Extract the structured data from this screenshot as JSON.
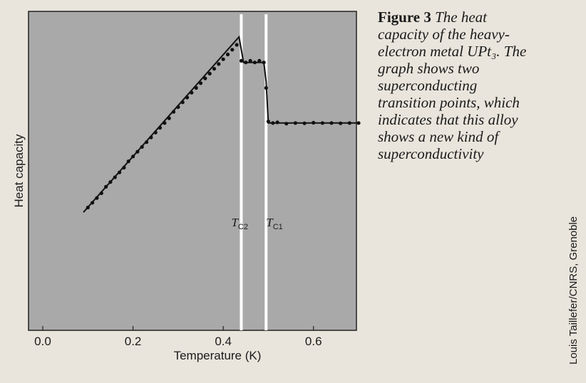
{
  "caption": {
    "label": "Figure 3",
    "text": "The heat capacity of the heavy-electron metal UPt₃. The graph shows two superconducting transition points, which indicates that this alloy shows a new kind of superconductivity"
  },
  "credit": "Louis Taillefer/CNRS, Grenoble",
  "colors": {
    "plot_background": "#a9a9a9",
    "page_background": "#e9e5dc",
    "marker_lines": "#ffffff",
    "data": "#111111"
  },
  "chart_data": {
    "type": "line",
    "title": "",
    "xlabel": "Temperature (K)",
    "ylabel": "Heat capacity",
    "xlim": [
      0.0,
      0.7
    ],
    "ylim": [
      0,
      1
    ],
    "y_ticks_shown": false,
    "grid": false,
    "x_tick_labels": [
      "0.0",
      "0.2",
      "0.4",
      "0.6"
    ],
    "x_ticks": [
      0.0,
      0.2,
      0.4,
      0.6
    ],
    "markers": [
      {
        "main": "T",
        "sub": "C2",
        "x": 0.44
      },
      {
        "main": "T",
        "sub": "C1",
        "x": 0.495
      }
    ],
    "fit_line": {
      "x": [
        0.09,
        0.435,
        0.445,
        0.49,
        0.495,
        0.5,
        0.7
      ],
      "y": [
        0.37,
        0.92,
        0.84,
        0.84,
        0.78,
        0.65,
        0.65
      ]
    },
    "points": {
      "x": [
        0.1,
        0.11,
        0.12,
        0.13,
        0.14,
        0.15,
        0.16,
        0.17,
        0.18,
        0.19,
        0.2,
        0.21,
        0.22,
        0.23,
        0.24,
        0.25,
        0.26,
        0.27,
        0.28,
        0.29,
        0.3,
        0.31,
        0.32,
        0.33,
        0.34,
        0.35,
        0.36,
        0.37,
        0.38,
        0.39,
        0.4,
        0.41,
        0.42,
        0.43,
        0.44,
        0.45,
        0.46,
        0.47,
        0.48,
        0.49,
        0.495,
        0.5,
        0.51,
        0.52,
        0.54,
        0.56,
        0.58,
        0.6,
        0.62,
        0.64,
        0.66,
        0.68,
        0.7
      ],
      "y": [
        0.385,
        0.4,
        0.415,
        0.43,
        0.45,
        0.465,
        0.48,
        0.495,
        0.51,
        0.53,
        0.545,
        0.56,
        0.575,
        0.59,
        0.605,
        0.62,
        0.635,
        0.65,
        0.665,
        0.685,
        0.7,
        0.715,
        0.73,
        0.745,
        0.76,
        0.775,
        0.79,
        0.805,
        0.82,
        0.835,
        0.85,
        0.865,
        0.88,
        0.895,
        0.845,
        0.84,
        0.845,
        0.84,
        0.845,
        0.84,
        0.76,
        0.655,
        0.65,
        0.652,
        0.648,
        0.65,
        0.649,
        0.651,
        0.65,
        0.65,
        0.649,
        0.65,
        0.65
      ]
    }
  }
}
